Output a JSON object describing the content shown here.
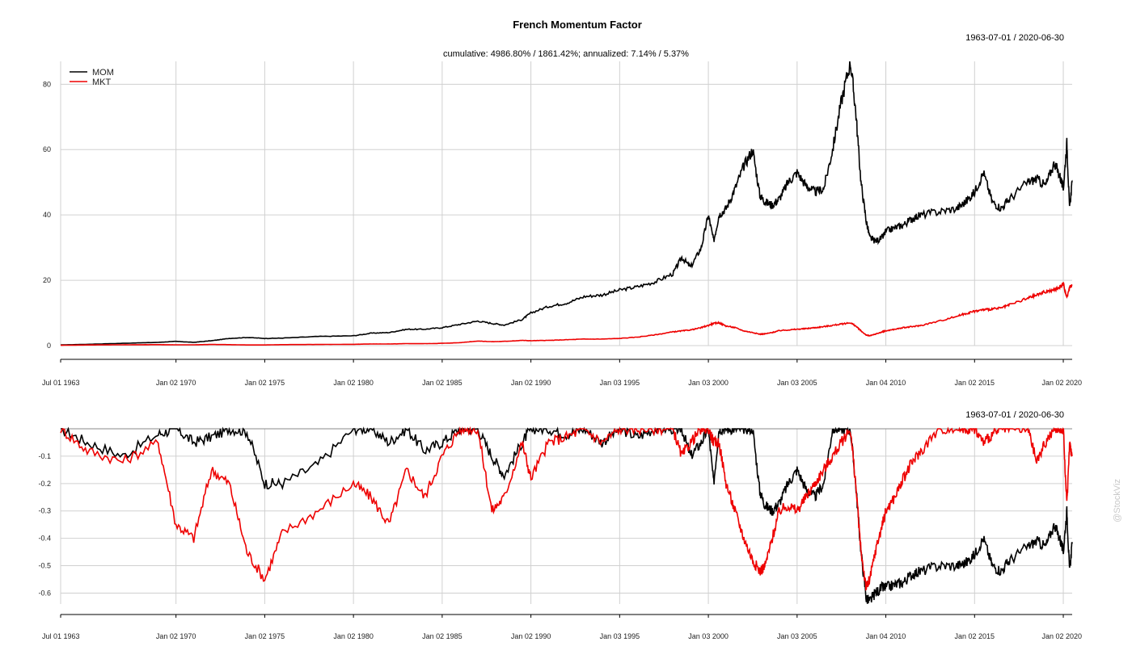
{
  "chart_data": [
    {
      "type": "line",
      "title": "French Momentum Factor",
      "subtitle": "cumulative: 4986.80% / 1861.42%; annualized: 7.14% / 5.37%",
      "date_range": "1963-07-01 / 2020-06-30",
      "x_tick_labels": [
        "Jul 01 1963",
        "Jan 02 1970",
        "Jan 02 1975",
        "Jan 02 1980",
        "Jan 02 1985",
        "Jan 02 1990",
        "Jan 03 1995",
        "Jan 03 2000",
        "Jan 03 2005",
        "Jan 04 2010",
        "Jan 02 2015",
        "Jan 02 2020"
      ],
      "x_tick_years": [
        1963.5,
        1970,
        1975,
        1980,
        1985,
        1990,
        1995,
        2000,
        2005,
        2010,
        2015,
        2020
      ],
      "xlim": [
        1963.5,
        2020.5
      ],
      "ylim": [
        0,
        87
      ],
      "y_ticks": [
        0,
        20,
        40,
        60,
        80
      ],
      "y_tick_labels": [
        "0",
        "20",
        "40",
        "60",
        "80"
      ],
      "grid": true,
      "legend_position": "top-left",
      "series": [
        {
          "name": "MOM",
          "color": "#000000",
          "x": [
            1963.5,
            1965,
            1967,
            1969,
            1970,
            1971,
            1972,
            1973,
            1974,
            1975,
            1976,
            1978,
            1980,
            1981,
            1982,
            1983,
            1984,
            1985,
            1986,
            1987,
            1987.8,
            1988.5,
            1989.5,
            1990,
            1991,
            1992,
            1993,
            1994,
            1995,
            1996,
            1997,
            1998,
            1998.5,
            1999,
            1999.6,
            2000.0,
            2000.3,
            2000.6,
            2001,
            2001.5,
            2002,
            2002.5,
            2002.9,
            2003.2,
            2003.6,
            2004,
            2004.5,
            2005,
            2005.5,
            2006,
            2006.5,
            2007,
            2007.5,
            2008.0,
            2008.3,
            2008.6,
            2008.9,
            2009.1,
            2009.4,
            2009.8,
            2010,
            2010.5,
            2011,
            2011.5,
            2012,
            2013,
            2014,
            2014.5,
            2015,
            2015.5,
            2016,
            2016.5,
            2017,
            2018,
            2018.5,
            2019,
            2019.5,
            2019.8,
            2020.0,
            2020.2,
            2020.35,
            2020.5
          ],
          "y": [
            0.2,
            0.4,
            0.7,
            1.0,
            1.3,
            1.0,
            1.5,
            2.2,
            2.5,
            2.2,
            2.3,
            2.8,
            3.0,
            3.8,
            4.0,
            5.0,
            5.0,
            5.5,
            6.5,
            7.5,
            6.8,
            6.3,
            8.0,
            10.0,
            12.0,
            13.0,
            15.0,
            15.5,
            17.0,
            18.0,
            19.5,
            22.0,
            27.0,
            24.0,
            30.0,
            40.0,
            32.0,
            40.0,
            42.0,
            48.0,
            55.0,
            60.0,
            46.0,
            44.0,
            43.0,
            45.0,
            50.0,
            53.0,
            49.0,
            47.0,
            48.0,
            60.0,
            75.0,
            87.0,
            72.0,
            50.0,
            38.0,
            33.0,
            32.0,
            33.0,
            35.0,
            36.0,
            37.0,
            39.0,
            40.0,
            41.0,
            42.0,
            44.0,
            47.0,
            53.0,
            44.0,
            42.0,
            45.0,
            50.0,
            51.0,
            49.0,
            56.0,
            52.0,
            48.0,
            62.0,
            42.0,
            50.0
          ],
          "drawdown": [
            0,
            -0.05,
            -0.1,
            -0.02,
            0,
            -0.05,
            -0.03,
            0,
            -0.01,
            -0.2,
            -0.2,
            -0.13,
            0,
            0,
            -0.05,
            0,
            -0.08,
            -0.05,
            0,
            0,
            -0.1,
            -0.17,
            -0.05,
            0,
            0,
            -0.02,
            0,
            -0.05,
            0,
            -0.03,
            0,
            0,
            0,
            -0.1,
            -0.05,
            0,
            -0.2,
            0,
            0,
            0,
            0,
            0,
            -0.23,
            -0.28,
            -0.3,
            -0.27,
            -0.2,
            -0.15,
            -0.22,
            -0.25,
            -0.2,
            0,
            0,
            0,
            -0.2,
            -0.45,
            -0.62,
            -0.63,
            -0.6,
            -0.58,
            -0.58,
            -0.57,
            -0.56,
            -0.53,
            -0.52,
            -0.5,
            -0.5,
            -0.49,
            -0.46,
            -0.4,
            -0.5,
            -0.52,
            -0.48,
            -0.43,
            -0.41,
            -0.43,
            -0.35,
            -0.4,
            -0.45,
            -0.3,
            -0.52,
            -0.42
          ]
        },
        {
          "name": "MKT",
          "color": "#ee0000",
          "x": [
            1963.5,
            1965,
            1967,
            1969,
            1970,
            1971,
            1972,
            1973,
            1974,
            1975,
            1976,
            1978,
            1980,
            1981,
            1982,
            1983,
            1984,
            1985,
            1986,
            1987,
            1987.8,
            1988.5,
            1989.5,
            1990,
            1991,
            1992,
            1993,
            1994,
            1995,
            1996,
            1997,
            1998,
            1998.5,
            1999,
            1999.6,
            2000.0,
            2000.3,
            2000.6,
            2001,
            2001.5,
            2002,
            2002.5,
            2002.9,
            2003.2,
            2003.6,
            2004,
            2004.5,
            2005,
            2005.5,
            2006,
            2006.5,
            2007,
            2007.5,
            2008.0,
            2008.3,
            2008.6,
            2008.9,
            2009.1,
            2009.4,
            2009.8,
            2010,
            2010.5,
            2011,
            2011.5,
            2012,
            2013,
            2014,
            2014.5,
            2015,
            2015.5,
            2016,
            2016.5,
            2017,
            2018,
            2018.5,
            2019,
            2019.5,
            2019.8,
            2020.0,
            2020.2,
            2020.35,
            2020.5
          ],
          "y": [
            0.1,
            0.2,
            0.25,
            0.3,
            0.25,
            0.25,
            0.35,
            0.3,
            0.2,
            0.2,
            0.3,
            0.35,
            0.4,
            0.5,
            0.5,
            0.6,
            0.6,
            0.7,
            0.9,
            1.4,
            1.2,
            1.3,
            1.6,
            1.5,
            1.6,
            1.8,
            2.0,
            2.0,
            2.2,
            2.6,
            3.3,
            4.2,
            4.5,
            4.8,
            5.5,
            6.2,
            6.8,
            7.0,
            6.0,
            5.5,
            4.5,
            4.0,
            3.5,
            3.6,
            4.0,
            4.6,
            4.8,
            5.0,
            5.2,
            5.5,
            5.8,
            6.2,
            6.6,
            7.0,
            6.0,
            4.5,
            3.2,
            3.0,
            3.5,
            4.2,
            4.5,
            5.0,
            5.5,
            5.8,
            6.2,
            7.5,
            9.0,
            9.8,
            10.5,
            11.0,
            11.2,
            11.5,
            12.5,
            14.5,
            15.5,
            16.5,
            17.0,
            18.0,
            19.0,
            14.5,
            18.0,
            18.5
          ],
          "drawdown": [
            0,
            -0.08,
            -0.12,
            -0.05,
            -0.35,
            -0.4,
            -0.15,
            -0.2,
            -0.45,
            -0.55,
            -0.38,
            -0.3,
            -0.2,
            -0.25,
            -0.35,
            -0.15,
            -0.25,
            -0.1,
            0,
            0,
            -0.3,
            -0.25,
            -0.05,
            -0.18,
            -0.05,
            -0.03,
            0,
            -0.05,
            0,
            0,
            0,
            0,
            -0.1,
            -0.05,
            0,
            0,
            -0.05,
            -0.05,
            -0.2,
            -0.3,
            -0.4,
            -0.48,
            -0.52,
            -0.5,
            -0.4,
            -0.3,
            -0.28,
            -0.3,
            -0.25,
            -0.2,
            -0.15,
            -0.1,
            -0.05,
            0,
            -0.2,
            -0.45,
            -0.58,
            -0.55,
            -0.45,
            -0.35,
            -0.3,
            -0.25,
            -0.18,
            -0.12,
            -0.08,
            0,
            0,
            0,
            0,
            -0.05,
            -0.02,
            0,
            0,
            0,
            -0.12,
            -0.05,
            0,
            0,
            0,
            -0.28,
            -0.05,
            -0.1
          ]
        }
      ]
    },
    {
      "type": "line",
      "title": "",
      "date_range": "1963-07-01 / 2020-06-30",
      "x_tick_labels": [
        "Jul 01 1963",
        "Jan 02 1970",
        "Jan 02 1975",
        "Jan 02 1980",
        "Jan 02 1985",
        "Jan 02 1990",
        "Jan 03 1995",
        "Jan 03 2000",
        "Jan 03 2005",
        "Jan 04 2010",
        "Jan 02 2015",
        "Jan 02 2020"
      ],
      "ylim": [
        -0.64,
        0
      ],
      "y_ticks": [
        -0.1,
        -0.2,
        -0.3,
        -0.4,
        -0.5,
        -0.6
      ],
      "y_tick_labels": [
        "-0.1",
        "-0.2",
        "-0.3",
        "-0.4",
        "-0.5",
        "-0.6"
      ],
      "grid": true,
      "series_ref": [
        "MOM",
        "MKT"
      ]
    }
  ],
  "watermark": "@StockViz"
}
